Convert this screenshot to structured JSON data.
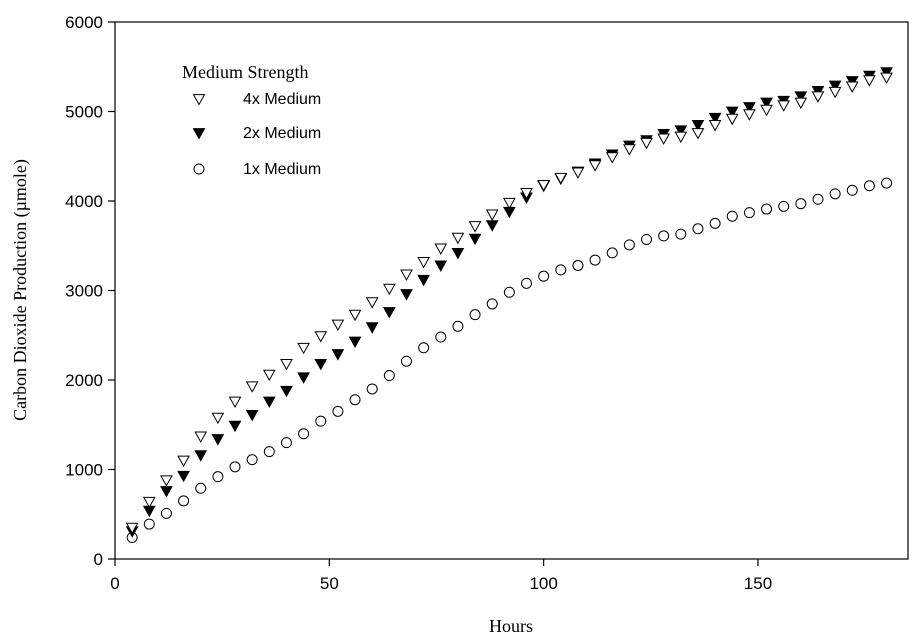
{
  "chart_data": {
    "type": "scatter",
    "title": "",
    "xlabel": "Hours",
    "ylabel": "Carbon Dioxide Production (µmole)",
    "xlim": [
      0,
      185
    ],
    "ylim": [
      0,
      6000
    ],
    "x_ticks": [
      0,
      50,
      100,
      150
    ],
    "y_ticks": [
      0,
      1000,
      2000,
      3000,
      4000,
      5000,
      6000
    ],
    "grid": false,
    "legend": {
      "title": "Medium Strength",
      "position": "top-left"
    },
    "x": [
      4,
      8,
      12,
      16,
      20,
      24,
      28,
      32,
      36,
      40,
      44,
      48,
      52,
      56,
      60,
      64,
      68,
      72,
      76,
      80,
      84,
      88,
      92,
      96,
      100,
      104,
      108,
      112,
      116,
      120,
      124,
      128,
      132,
      136,
      140,
      144,
      148,
      152,
      156,
      160,
      164,
      168,
      172,
      176,
      180
    ],
    "series": [
      {
        "name": "4x Medium",
        "marker": "triangle-down-open",
        "values": [
          350,
          640,
          880,
          1100,
          1370,
          1580,
          1760,
          1930,
          2060,
          2180,
          2360,
          2490,
          2620,
          2730,
          2870,
          3020,
          3180,
          3320,
          3470,
          3590,
          3720,
          3850,
          3980,
          4090,
          4180,
          4260,
          4320,
          4400,
          4490,
          4580,
          4650,
          4700,
          4720,
          4760,
          4850,
          4920,
          4970,
          5020,
          5070,
          5100,
          5170,
          5220,
          5280,
          5350,
          5380
        ]
      },
      {
        "name": "2x Medium",
        "marker": "triangle-down-filled",
        "values": [
          310,
          540,
          760,
          930,
          1160,
          1340,
          1490,
          1610,
          1760,
          1880,
          2030,
          2180,
          2290,
          2430,
          2590,
          2760,
          2960,
          3120,
          3280,
          3420,
          3580,
          3730,
          3880,
          4040,
          4170,
          4250,
          4330,
          4420,
          4520,
          4620,
          4680,
          4750,
          4790,
          4850,
          4930,
          5000,
          5050,
          5100,
          5120,
          5170,
          5230,
          5290,
          5340,
          5400,
          5440
        ]
      },
      {
        "name": "1x Medium",
        "marker": "circle-open",
        "values": [
          240,
          390,
          510,
          650,
          790,
          920,
          1030,
          1110,
          1200,
          1300,
          1400,
          1540,
          1650,
          1780,
          1900,
          2050,
          2210,
          2360,
          2480,
          2600,
          2730,
          2850,
          2980,
          3080,
          3160,
          3230,
          3280,
          3340,
          3420,
          3510,
          3570,
          3610,
          3630,
          3690,
          3750,
          3830,
          3870,
          3910,
          3940,
          3970,
          4020,
          4080,
          4120,
          4170,
          4200
        ]
      }
    ]
  }
}
